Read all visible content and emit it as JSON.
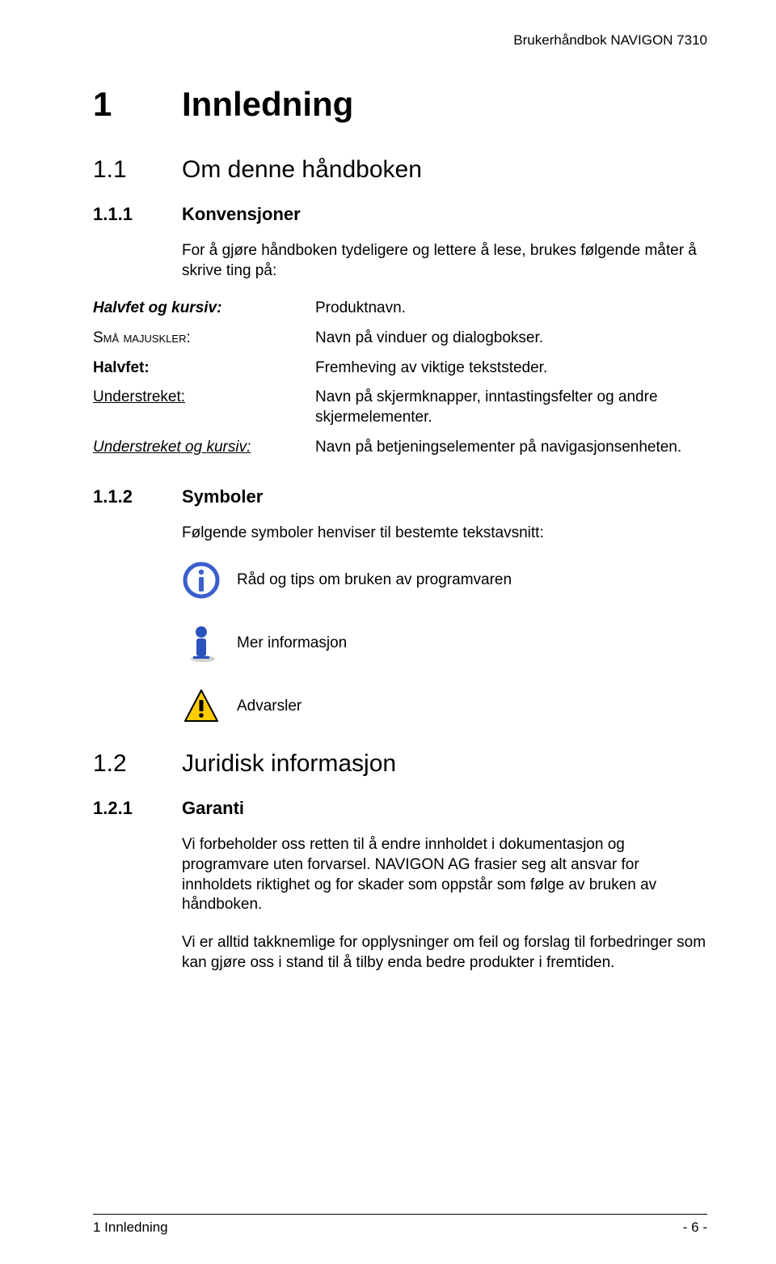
{
  "header": "Brukerhåndbok NAVIGON 7310",
  "h1": {
    "num": "1",
    "title": "Innledning"
  },
  "s1_1": {
    "num": "1.1",
    "title": "Om denne håndboken"
  },
  "s1_1_1": {
    "num": "1.1.1",
    "title": "Konvensjoner",
    "intro": "For å gjøre håndboken tydeligere og lettere å lese, brukes følgende måter å skrive ting på:"
  },
  "conventions": [
    {
      "left": "Halvfet og kursiv:",
      "right": "Produktnavn.",
      "leftClass": "halvfet-kursiv"
    },
    {
      "left": "Små majuskler:",
      "right": "Navn på vinduer og dialogbokser.",
      "leftClass": "sma-majuskler"
    },
    {
      "left": "Halvfet:",
      "right": "Fremheving av viktige tekststeder.",
      "leftClass": "halvfet"
    },
    {
      "left": "Understreket:",
      "right": "Navn på skjermknapper, inntastingsfelter og andre skjermelementer.",
      "leftClass": "understreket"
    },
    {
      "left": "Understreket og kursiv:",
      "right": "Navn på betjeningselementer på navigasjonsenheten.",
      "leftClass": "understreket-kursiv"
    }
  ],
  "s1_1_2": {
    "num": "1.1.2",
    "title": "Symboler",
    "intro": "Følgende symboler henviser til bestemte tekstavsnitt:"
  },
  "symbols": {
    "tip": "Råd og tips om bruken av programvaren",
    "info": "Mer informasjon",
    "warning": "Advarsler"
  },
  "s1_2": {
    "num": "1.2",
    "title": "Juridisk informasjon"
  },
  "s1_2_1": {
    "num": "1.2.1",
    "title": "Garanti",
    "p1": "Vi forbeholder oss retten til å endre innholdet i dokumentasjon og programvare uten forvarsel. NAVIGON AG frasier seg alt ansvar for innholdets riktighet og for skader som oppstår som følge av bruken av håndboken.",
    "p2": "Vi er alltid takknemlige for opplysninger om feil og forslag til forbedringer som kan gjøre oss i stand til å tilby enda bedre produkter i fremtiden."
  },
  "footer": {
    "left": "1 Innledning",
    "right": "- 6 -"
  },
  "colors": {
    "text": "#000000",
    "bg": "#ffffff",
    "tip_border": "#3a5fcd",
    "tip_fill": "#ffffff",
    "tip_mark": "#3a5fcd",
    "info_blue": "#2a52be",
    "info_shadow": "#b0b0b0",
    "warning_fill": "#ffcc00",
    "warning_border": "#000000"
  }
}
